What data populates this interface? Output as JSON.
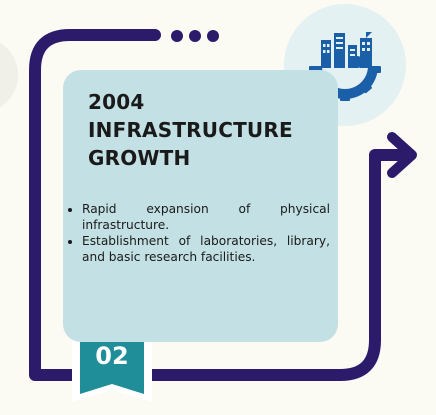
{
  "card": {
    "title_lines": [
      "2004",
      "INFRASTRUCTURE",
      "GROWTH"
    ],
    "bullets": [
      "Rapid expansion of physical infrastructure.",
      "Establishment of laboratories, library, and basic research facilities."
    ],
    "step_number": "02"
  },
  "icons": {
    "header": "city-gear-icon",
    "dots": "three-dots-icon",
    "arrow": "arrow-right-icon"
  },
  "colors": {
    "background": "#fbfbf4",
    "card": "#c3e1e4",
    "frame": "#2c1a6b",
    "teal": "#1f8e98",
    "icon_blue": "#1b5fa8",
    "icon_circle": "#e3f1f3"
  }
}
